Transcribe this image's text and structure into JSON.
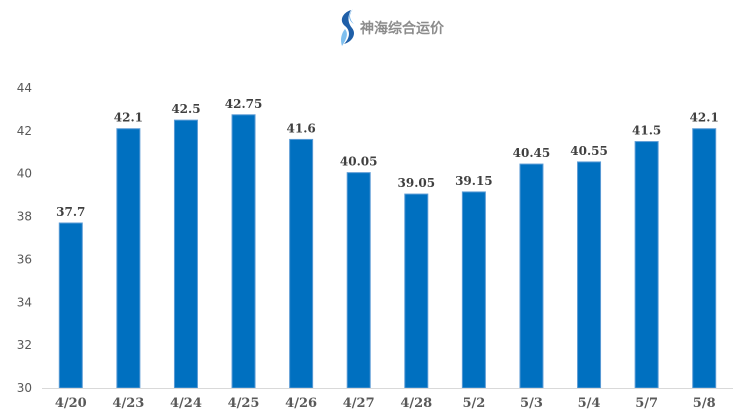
{
  "logo": {
    "text": "神海综合运价",
    "icon": "s-wave-logo-icon",
    "color": "#3a7fc4"
  },
  "chart_data": {
    "type": "bar",
    "title": "",
    "xlabel": "",
    "ylabel": "",
    "categories": [
      "4/20",
      "4/23",
      "4/24",
      "4/25",
      "4/26",
      "4/27",
      "4/28",
      "5/2",
      "5/3",
      "5/4",
      "5/7",
      "5/8"
    ],
    "values": [
      37.7,
      42.1,
      42.5,
      42.75,
      41.6,
      40.05,
      39.05,
      39.15,
      40.45,
      40.55,
      41.5,
      42.1
    ],
    "value_labels": [
      "37.7",
      "42.1",
      "42.5",
      "42.75",
      "41.6",
      "40.05",
      "39.05",
      "39.15",
      "40.45",
      "40.55",
      "41.5",
      "42.1"
    ],
    "ylim": [
      30,
      44
    ],
    "yticks": [
      "30",
      "32",
      "34",
      "36",
      "38",
      "40",
      "42",
      "44"
    ],
    "grid": false,
    "legend": "none",
    "bar_color": "#0070c0",
    "bar_edge_color": "#5b9bd5"
  }
}
